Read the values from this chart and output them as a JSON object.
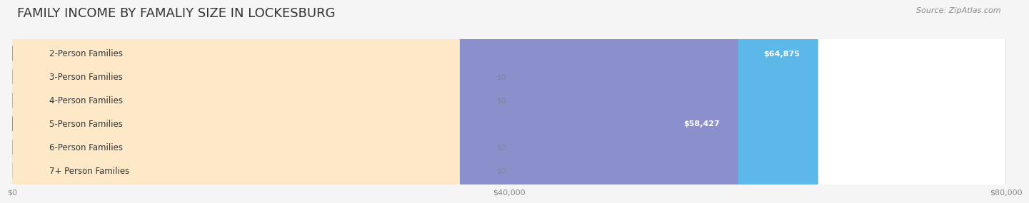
{
  "title": "FAMILY INCOME BY FAMALIY SIZE IN LOCKESBURG",
  "source": "Source: ZipAtlas.com",
  "categories": [
    "2-Person Families",
    "3-Person Families",
    "4-Person Families",
    "5-Person Families",
    "6-Person Families",
    "7+ Person Families"
  ],
  "values": [
    64875,
    0,
    0,
    58427,
    0,
    0
  ],
  "bar_colors": [
    "#5bb8e8",
    "#c9a8d4",
    "#7ecec4",
    "#8b8fcc",
    "#f799b0",
    "#f5c98a"
  ],
  "label_bg_colors": [
    "#daeef8",
    "#ede0f5",
    "#d5f0ee",
    "#dddff5",
    "#fde0ea",
    "#fde8c8"
  ],
  "bar_label_colors": [
    "#ffffff",
    "#ffffff",
    "#ffffff",
    "#ffffff",
    "#ffffff",
    "#ffffff"
  ],
  "value_labels": [
    "$64,875",
    "$0",
    "$0",
    "$58,427",
    "$0",
    "$0"
  ],
  "xlim": [
    0,
    80000
  ],
  "xticks": [
    0,
    40000,
    80000
  ],
  "xtick_labels": [
    "$0",
    "$40,000",
    "$80,000"
  ],
  "background_color": "#f5f5f5",
  "bar_bg_color": "#ebebeb",
  "title_fontsize": 13,
  "label_fontsize": 8.5,
  "value_fontsize": 8,
  "source_fontsize": 8
}
